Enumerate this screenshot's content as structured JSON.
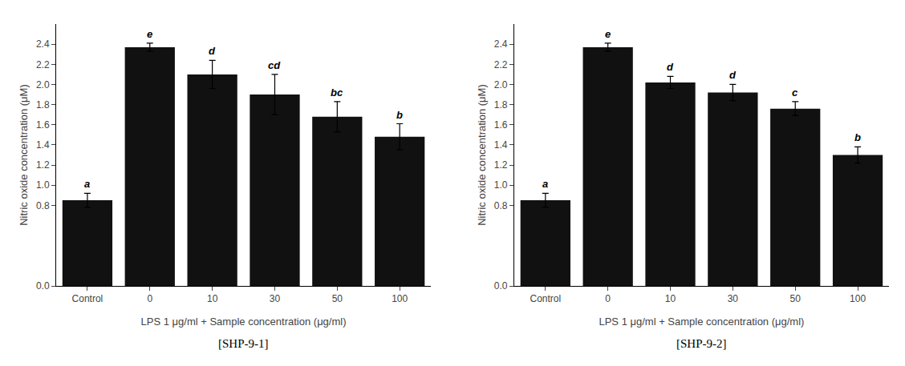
{
  "chart_data": [
    {
      "type": "bar",
      "title": "[SHP-9-1]",
      "categories": [
        "Control",
        "0",
        "10",
        "30",
        "50",
        "100"
      ],
      "values": [
        0.85,
        2.37,
        2.1,
        1.9,
        1.68,
        1.48
      ],
      "errors": [
        0.07,
        0.04,
        0.14,
        0.2,
        0.15,
        0.13
      ],
      "annotations": [
        "a",
        "e",
        "d",
        "cd",
        "bc",
        "b"
      ],
      "xlabel": "LPS 1 μg/ml + Sample concentration (μg/ml)",
      "ylabel": "Nitric oxide concentration (μM)",
      "color": "#111111",
      "ylim": [
        0,
        2.6
      ],
      "yticks": [
        {
          "value": 0,
          "label": "0.0"
        },
        0.8,
        {
          "value": 1,
          "label": "1.0"
        },
        1.2,
        1.4,
        1.6,
        1.8,
        {
          "value": 2,
          "label": "2.0"
        },
        2.2,
        2.4
      ],
      "grid": false
    },
    {
      "type": "bar",
      "title": "[SHP-9-2]",
      "categories": [
        "Control",
        "0",
        "10",
        "30",
        "50",
        "100"
      ],
      "values": [
        0.85,
        2.37,
        2.02,
        1.92,
        1.76,
        1.3
      ],
      "errors": [
        0.07,
        0.04,
        0.06,
        0.08,
        0.07,
        0.08
      ],
      "annotations": [
        "a",
        "e",
        "d",
        "d",
        "c",
        "b"
      ],
      "xlabel": "LPS 1 μg/ml + Sample concentration (μg/ml)",
      "ylabel": "Nitric oxide concentration (μM)",
      "color": "#111111",
      "ylim": [
        0,
        2.6
      ],
      "yticks": [
        {
          "value": 0,
          "label": "0.0"
        },
        0.8,
        {
          "value": 1,
          "label": "1.0"
        },
        1.2,
        1.4,
        1.6,
        1.8,
        {
          "value": 2,
          "label": "2.0"
        },
        2.2,
        2.4
      ],
      "grid": false
    }
  ]
}
